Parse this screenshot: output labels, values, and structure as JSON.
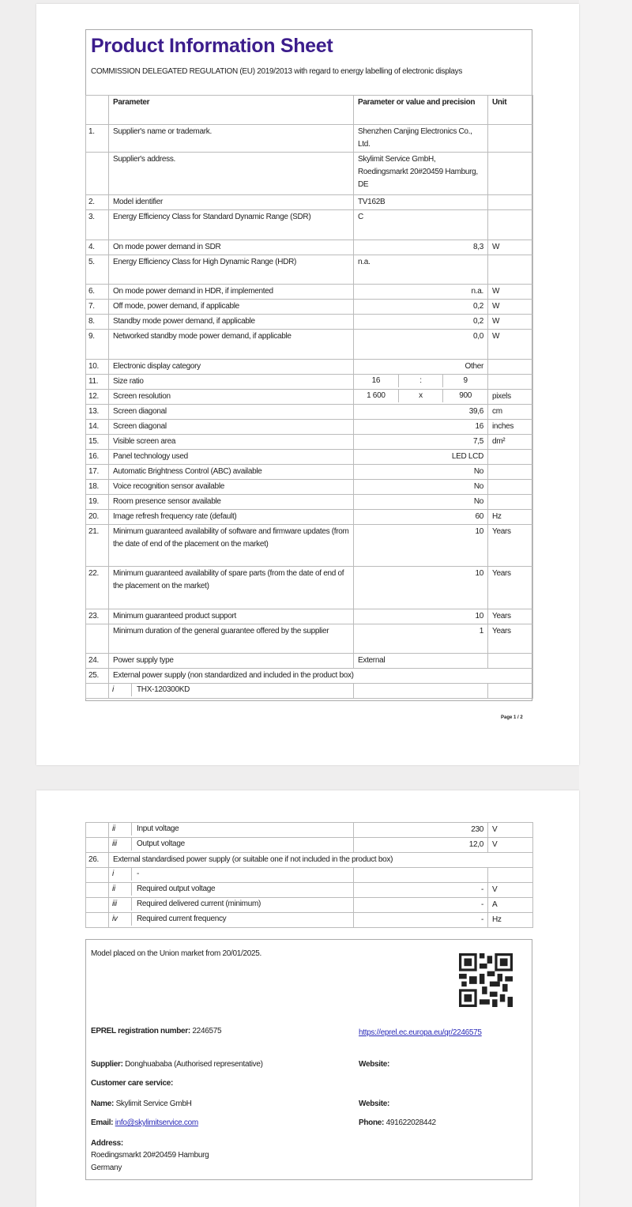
{
  "page1": {
    "title": "Product Information Sheet",
    "subtitle": "COMMISSION DELEGATED REGULATION (EU) 2019/2013 with regard to energy labelling of electronic displays",
    "header": {
      "num": "",
      "param": "Parameter",
      "value": "Parameter or value and precision",
      "unit": "Unit"
    },
    "rows": [
      {
        "n": "1.",
        "param": "Supplier's name or trademark.",
        "value": "Shenzhen Canjing Electronics Co., Ltd.",
        "unit": "",
        "h": 35
      },
      {
        "n": "",
        "param": "Supplier's address.",
        "value": "Skylimit Service GmbH, Roedingsmarkt 20#20459 Hamburg, DE",
        "unit": "",
        "h": 54
      },
      {
        "n": "2.",
        "param": "Model identifier",
        "value": "TV162B",
        "unit": ""
      },
      {
        "n": "3.",
        "param": "Energy Efficiency Class for Standard Dynamic Range (SDR)",
        "value": "C",
        "unit": "",
        "h": 38
      },
      {
        "n": "4.",
        "param": "On mode power demand in SDR",
        "value": "8,3",
        "unit": "W",
        "align": "r"
      },
      {
        "n": "5.",
        "param": "Energy Efficiency Class for High Dynamic Range (HDR)",
        "value": "n.a.",
        "unit": "",
        "h": 37
      },
      {
        "n": "6.",
        "param": "On mode power demand in HDR, if implemented",
        "value": "n.a.",
        "unit": "W",
        "align": "r"
      },
      {
        "n": "7.",
        "param": "Off mode, power demand, if applicable",
        "value": "0,2",
        "unit": "W",
        "align": "r"
      },
      {
        "n": "8.",
        "param": "Standby mode power demand, if applicable",
        "value": "0,2",
        "unit": "W",
        "align": "r"
      },
      {
        "n": "9.",
        "param": "Networked standby mode power demand, if applicable",
        "value": "0,0",
        "unit": "W",
        "align": "r",
        "h": 38
      },
      {
        "n": "10.",
        "param": "Electronic display category",
        "value": "Other",
        "unit": "",
        "align": "r"
      },
      {
        "n": "11.",
        "param": "Size ratio",
        "parts": [
          "16",
          ":",
          "9"
        ],
        "unit": ""
      },
      {
        "n": "12.",
        "param": "Screen resolution",
        "parts": [
          "1 600",
          "x",
          "900"
        ],
        "unit": "pixels"
      },
      {
        "n": "13.",
        "param": "Screen diagonal",
        "value": "39,6",
        "unit": "cm",
        "align": "r"
      },
      {
        "n": "14.",
        "param": "Screen diagonal",
        "value": "16",
        "unit": "inches",
        "align": "r"
      },
      {
        "n": "15.",
        "param": "Visible screen area",
        "value": "7,5",
        "unit": "dm²",
        "align": "r"
      },
      {
        "n": "16.",
        "param": "Panel technology used",
        "value": "LED LCD",
        "unit": "",
        "align": "r"
      },
      {
        "n": "17.",
        "param": "Automatic Brightness Control (ABC) available",
        "value": "No",
        "unit": "",
        "align": "r"
      },
      {
        "n": "18.",
        "param": "Voice recognition sensor available",
        "value": "No",
        "unit": "",
        "align": "r"
      },
      {
        "n": "19.",
        "param": "Room presence sensor available",
        "value": "No",
        "unit": "",
        "align": "r"
      },
      {
        "n": "20.",
        "param": "Image refresh frequency rate (default)",
        "value": "60",
        "unit": "Hz",
        "align": "r"
      },
      {
        "n": "21.",
        "param": "Minimum guaranteed availability of software and firmware updates (from the date of end of the placement on the market)",
        "value": "10",
        "unit": "Years",
        "align": "r",
        "h": 53
      },
      {
        "n": "22.",
        "param": "Minimum guaranteed availability of spare parts (from the date of end of the placement on the market)",
        "value": "10",
        "unit": "Years",
        "align": "r",
        "h": 54
      },
      {
        "n": "23.",
        "param": "Minimum guaranteed product support",
        "value": "10",
        "unit": "Years",
        "align": "r"
      },
      {
        "n": "",
        "param": "Minimum duration of the general guarantee offered by the supplier",
        "value": "1",
        "unit": "Years",
        "align": "r",
        "h": 37
      },
      {
        "n": "24.",
        "param": "Power supply type",
        "value": "External",
        "unit": ""
      },
      {
        "n": "25.",
        "span": "External power supply (non standardized and included in the product box)"
      },
      {
        "n": "",
        "sub": "i",
        "param": "THX-120300KD",
        "value": "",
        "unit": ""
      }
    ],
    "page_number": "Page 1 / 2"
  },
  "page2": {
    "rows": [
      {
        "n": "",
        "sub": "ii",
        "param": "Input voltage",
        "value": "230",
        "unit": "V",
        "align": "r"
      },
      {
        "n": "",
        "sub": "iii",
        "param": "Output voltage",
        "value": "12,0",
        "unit": "V",
        "align": "r"
      },
      {
        "n": "26.",
        "span": "External standardised power supply (or suitable one if not included in the product box)"
      },
      {
        "n": "",
        "sub": "i",
        "param": "-",
        "value": "",
        "unit": ""
      },
      {
        "n": "",
        "sub": "ii",
        "param": "Required output voltage",
        "value": "-",
        "unit": "V",
        "align": "r"
      },
      {
        "n": "",
        "sub": "iii",
        "param": "Required delivered current (minimum)",
        "value": "-",
        "unit": "A",
        "align": "r"
      },
      {
        "n": "",
        "sub": "iv",
        "param": "Required current frequency",
        "value": "-",
        "unit": "Hz",
        "align": "r"
      }
    ],
    "footer": {
      "placed": "Model placed on the Union market from 20/01/2025.",
      "eprel_label": "EPREL registration number:",
      "eprel_value": "2246575",
      "eprel_link": "https://eprel.ec.europa.eu/qr/2246575",
      "supplier_label": "Supplier:",
      "supplier_value": "Donghuababa (Authorised representative)",
      "website_label_1": "Website:",
      "customer_care": "Customer care service:",
      "name_label": "Name:",
      "name_value": "Skylimit Service GmbH",
      "website_label_2": "Website:",
      "email_label": "Email:",
      "email_value": "info@skylimitservice.com",
      "phone_label": "Phone:",
      "phone_value": "491622028442",
      "address_label": "Address:",
      "address_line1": "Roedingsmarkt 20#20459 Hamburg",
      "address_line2": "Germany"
    }
  }
}
